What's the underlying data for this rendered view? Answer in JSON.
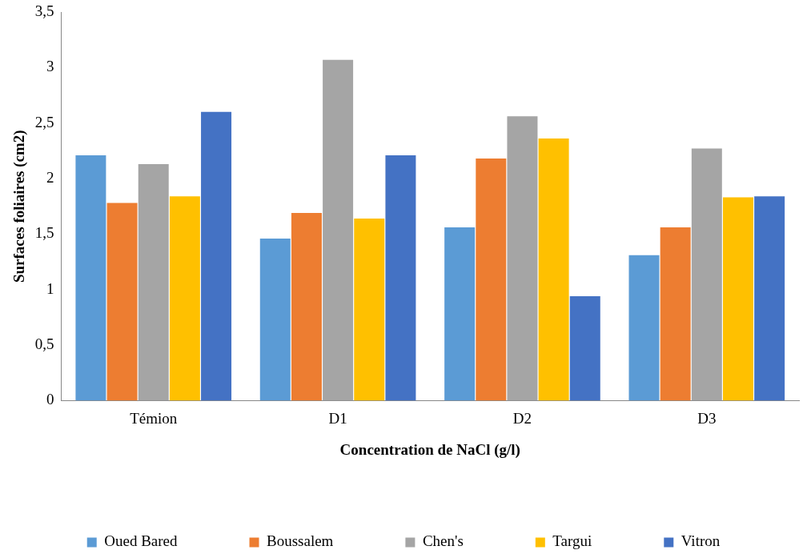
{
  "chart_data": {
    "type": "bar",
    "xlabel": "Concentration de NaCl (g/l)",
    "ylabel": "Surfaces foliaires (cm2)",
    "categories": [
      "Témion",
      "D1",
      "D2",
      "D3"
    ],
    "series": [
      {
        "name": "Oued Bared",
        "color": "#5b9bd5",
        "values": [
          2.21,
          1.46,
          1.56,
          1.31
        ]
      },
      {
        "name": "Boussalem",
        "color": "#ed7d31",
        "values": [
          1.78,
          1.69,
          2.18,
          1.56
        ]
      },
      {
        "name": "Chen's",
        "color": "#a5a5a5",
        "values": [
          2.13,
          3.07,
          2.56,
          2.27
        ]
      },
      {
        "name": "Targui",
        "color": "#ffc000",
        "values": [
          1.84,
          1.64,
          2.36,
          1.83
        ]
      },
      {
        "name": "Vitron",
        "color": "#4472c4",
        "values": [
          2.6,
          2.21,
          0.94,
          1.84
        ]
      }
    ],
    "ylim": [
      0,
      3.5
    ],
    "yticks": [
      0,
      {
        "value": 0.5,
        "label": "0,5"
      },
      1,
      {
        "value": 1.5,
        "label": "1,5"
      },
      2,
      {
        "value": 2.5,
        "label": "2,5"
      },
      3,
      {
        "value": 3.5,
        "label": "3,5"
      }
    ],
    "grid": false,
    "legend": "bottom"
  }
}
